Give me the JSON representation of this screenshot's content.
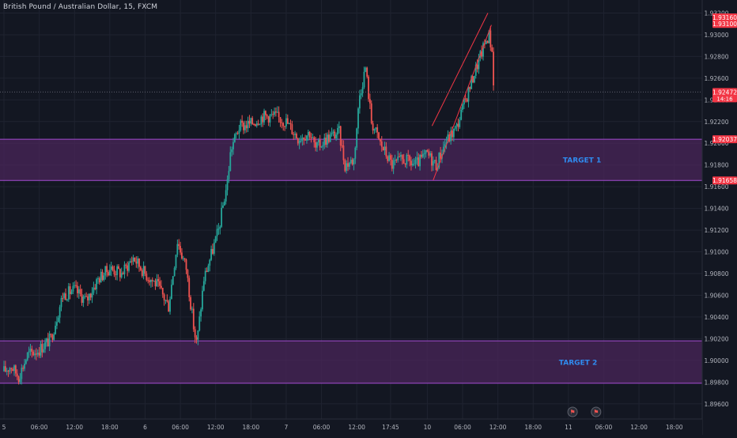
{
  "header": {
    "symbol_title": "British Pound / Australian Dollar, 15, FXCM"
  },
  "colors": {
    "background": "#131722",
    "grid": "#1f2330",
    "up": "#26a69a",
    "down": "#ef5350",
    "zone_fill": "#4a2559",
    "zone_line": "#a24bd0",
    "target_text": "#2f8cf0",
    "channel": "#f23645",
    "axis_text": "#b2b5be",
    "price_line": "#5d606b"
  },
  "chart_data": {
    "type": "candlestick",
    "title": "British Pound / Australian Dollar, 15, FXCM",
    "xlabel": "",
    "ylabel": "",
    "ylim": [
      1.8946,
      1.9332
    ],
    "x_ticks": [
      {
        "label": "5",
        "t": 0
      },
      {
        "label": "06:00",
        "t": 6
      },
      {
        "label": "12:00",
        "t": 12
      },
      {
        "label": "18:00",
        "t": 18
      },
      {
        "label": "6",
        "t": 24
      },
      {
        "label": "06:00",
        "t": 30
      },
      {
        "label": "12:00",
        "t": 36
      },
      {
        "label": "18:00",
        "t": 42
      },
      {
        "label": "7",
        "t": 48
      },
      {
        "label": "06:00",
        "t": 54
      },
      {
        "label": "12:00",
        "t": 60
      },
      {
        "label": "17:45",
        "t": 65.75
      },
      {
        "label": "10",
        "t": 72
      },
      {
        "label": "06:00",
        "t": 78
      },
      {
        "label": "12:00",
        "t": 84
      },
      {
        "label": "18:00",
        "t": 90
      },
      {
        "label": "11",
        "t": 96
      },
      {
        "label": "06:00",
        "t": 102
      },
      {
        "label": "12:00",
        "t": 108
      },
      {
        "label": "18:00",
        "t": 114
      }
    ],
    "y_ticks": [
      "1.89600",
      "1.89800",
      "1.90000",
      "1.90200",
      "1.90400",
      "1.90600",
      "1.90800",
      "1.91000",
      "1.91200",
      "1.91400",
      "1.91600",
      "1.91800",
      "1.92000",
      "1.92200",
      "1.92400",
      "1.92600",
      "1.92800",
      "1.93000",
      "1.93200"
    ],
    "price_badges": [
      {
        "label": "1.93160",
        "value": 1.9316,
        "color": "#f23645"
      },
      {
        "label": "1.93100",
        "value": 1.931,
        "color": "#f23645"
      },
      {
        "label": "1.92472",
        "value": 1.92472,
        "color": "#f23645",
        "sub": "14:16"
      },
      {
        "label": "1.92037",
        "value": 1.92037,
        "color": "#f23645"
      },
      {
        "label": "1.91658",
        "value": 1.91658,
        "color": "#f23645"
      }
    ],
    "zones": [
      {
        "name": "TARGET 1",
        "top": 1.92037,
        "bottom": 1.91658
      },
      {
        "name": "TARGET 2",
        "top": 1.9018,
        "bottom": 1.8979
      }
    ],
    "channel": {
      "upper": [
        [
          72.8,
          1.9216
        ],
        [
          82.3,
          1.932
        ]
      ],
      "lower": [
        [
          73.0,
          1.9166
        ],
        [
          82.9,
          1.9309
        ]
      ]
    },
    "current_price": 1.92472,
    "anchors": [
      [
        0,
        1.899
      ],
      [
        1.2,
        1.8995
      ],
      [
        2.5,
        1.8985
      ],
      [
        4,
        1.9005
      ],
      [
        6,
        1.901
      ],
      [
        8,
        1.902
      ],
      [
        10,
        1.906
      ],
      [
        12,
        1.9065
      ],
      [
        14,
        1.9055
      ],
      [
        16,
        1.9075
      ],
      [
        18,
        1.9085
      ],
      [
        20,
        1.908
      ],
      [
        22,
        1.9095
      ],
      [
        24,
        1.908
      ],
      [
        26,
        1.907
      ],
      [
        28,
        1.905
      ],
      [
        29.5,
        1.911
      ],
      [
        31,
        1.9085
      ],
      [
        32.4,
        1.9025
      ],
      [
        32.8,
        1.9015
      ],
      [
        34,
        1.9075
      ],
      [
        36.5,
        1.912
      ],
      [
        38,
        1.9165
      ],
      [
        38.6,
        1.9195
      ],
      [
        40,
        1.9215
      ],
      [
        42,
        1.9218
      ],
      [
        44,
        1.9225
      ],
      [
        46,
        1.9225
      ],
      [
        48,
        1.922
      ],
      [
        50,
        1.9205
      ],
      [
        52,
        1.921
      ],
      [
        53,
        1.9195
      ],
      [
        55,
        1.9205
      ],
      [
        57,
        1.921
      ],
      [
        58,
        1.918
      ],
      [
        59.5,
        1.9185
      ],
      [
        60.5,
        1.9245
      ],
      [
        61.5,
        1.927
      ],
      [
        62.5,
        1.922
      ],
      [
        64,
        1.92
      ],
      [
        66,
        1.918
      ],
      [
        68,
        1.9185
      ],
      [
        70,
        1.918
      ],
      [
        72,
        1.919
      ],
      [
        73.5,
        1.918
      ],
      [
        75,
        1.92
      ],
      [
        77,
        1.9215
      ],
      [
        78.5,
        1.924
      ],
      [
        80,
        1.9265
      ],
      [
        81,
        1.928
      ],
      [
        82,
        1.9295
      ],
      [
        82.5,
        1.93
      ],
      [
        83.0,
        1.9285
      ],
      [
        83.3,
        1.9247
      ]
    ]
  },
  "markers": [
    {
      "name": "economic-event-flags",
      "t": 96.7,
      "glyph": "⚑"
    },
    {
      "name": "economic-event-flag",
      "t": 100.7,
      "glyph": "⚑"
    }
  ]
}
